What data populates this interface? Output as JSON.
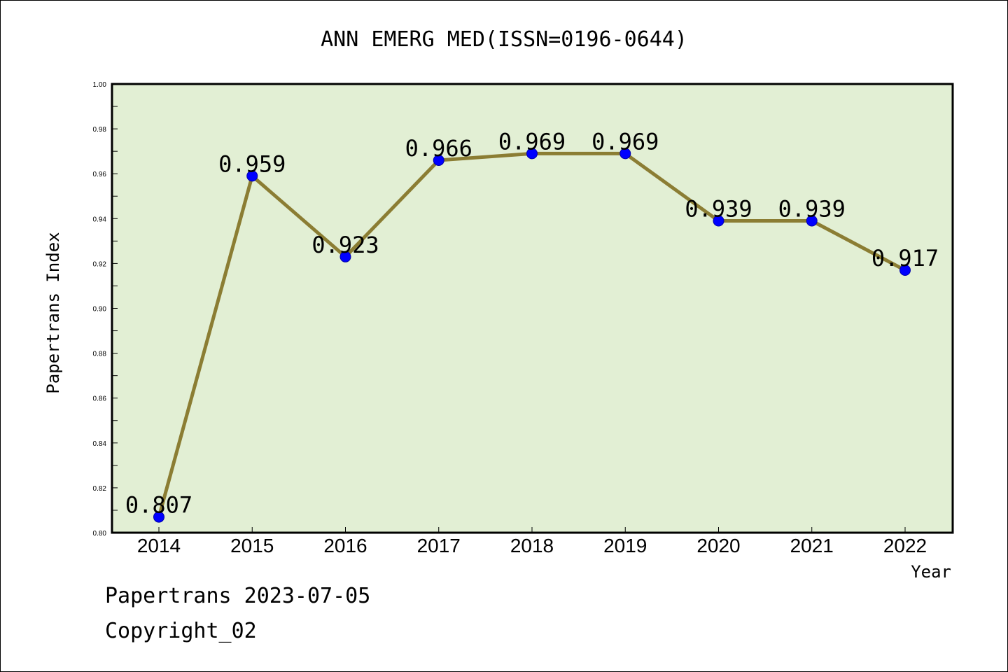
{
  "chart_data": {
    "type": "line",
    "title": "ANN EMERG MED(ISSN=0196-0644)",
    "xlabel": "Year",
    "ylabel": "Papertrans Index",
    "categories": [
      "2014",
      "2015",
      "2016",
      "2017",
      "2018",
      "2019",
      "2020",
      "2021",
      "2022"
    ],
    "values": [
      0.807,
      0.959,
      0.923,
      0.966,
      0.969,
      0.969,
      0.939,
      0.939,
      0.917
    ],
    "data_labels": [
      "0.807",
      "0.959",
      "0.923",
      "0.966",
      "0.969",
      "0.969",
      "0.939",
      "0.939",
      "0.917"
    ],
    "ylim": [
      0.8,
      1.0
    ],
    "yticks": [
      "0.80",
      "0.82",
      "0.84",
      "0.86",
      "0.88",
      "0.90",
      "0.92",
      "0.94",
      "0.96",
      "0.98",
      "1.00"
    ],
    "grid": false,
    "legend": "none",
    "colors": {
      "plot_background": "#e2efd4",
      "line": "#8b7d33",
      "marker": "#0000ff"
    }
  },
  "footer": {
    "source": "Papertrans 2023-07-05",
    "copyright": "Copyright_02"
  }
}
